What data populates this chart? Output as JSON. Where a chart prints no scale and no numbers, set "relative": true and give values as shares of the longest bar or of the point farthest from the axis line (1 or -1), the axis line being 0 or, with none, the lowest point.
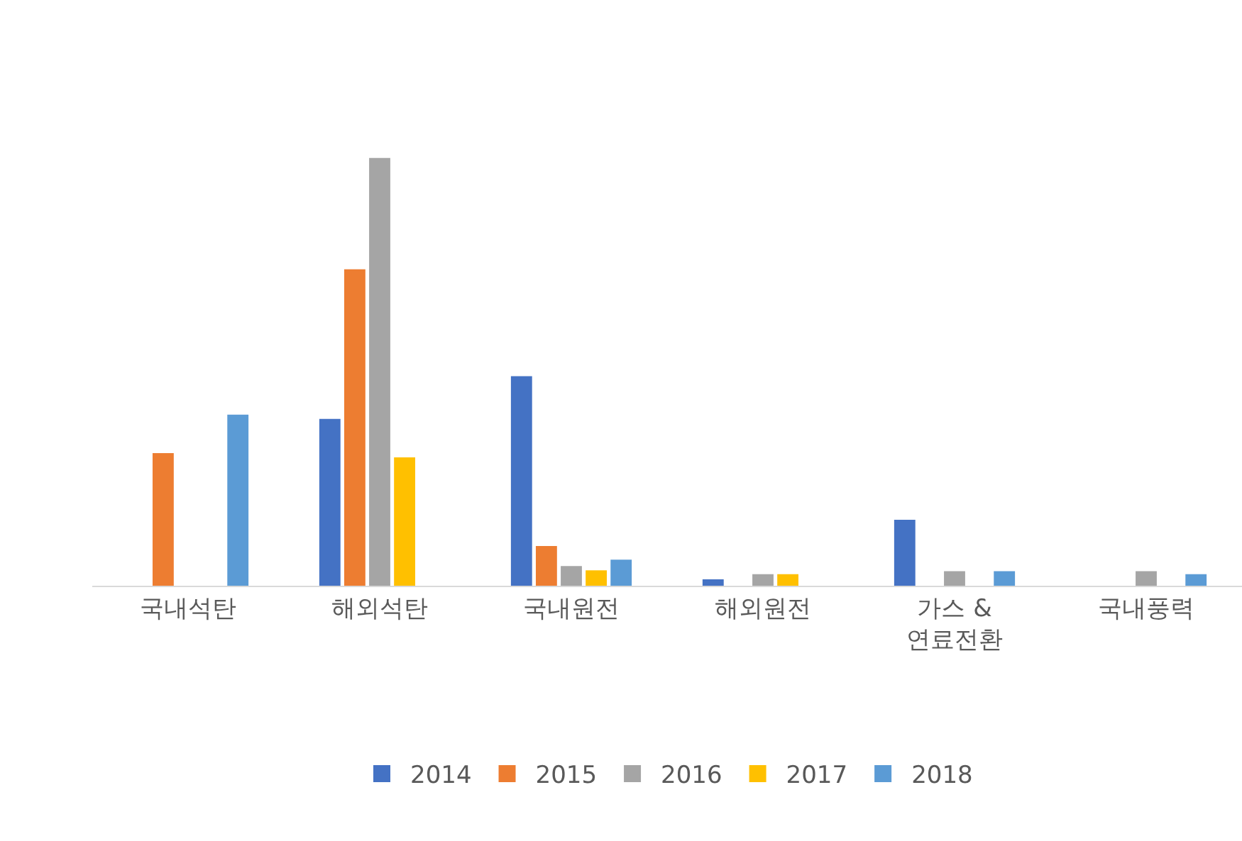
{
  "chart_data": {
    "type": "bar",
    "categories": [
      "국내석탄",
      "해외석탄",
      "국내원전",
      "해외원전",
      "가스 &\n연료전환",
      "국내풍력"
    ],
    "series": [
      {
        "name": "2014",
        "color": "#4472c4",
        "values": [
          null,
          0.39,
          0.49,
          0.015,
          0.154,
          null
        ]
      },
      {
        "name": "2015",
        "color": "#ed7d31",
        "values": [
          0.31,
          0.74,
          0.093,
          null,
          null,
          null
        ]
      },
      {
        "name": "2016",
        "color": "#a5a5a5",
        "values": [
          null,
          1,
          0.046,
          0.027,
          0.034,
          0.034
        ]
      },
      {
        "name": "2017",
        "color": "#ffc000",
        "values": [
          null,
          0.3,
          0.036,
          0.027,
          null,
          null
        ]
      },
      {
        "name": "2018",
        "color": "#5b9bd5",
        "values": [
          0.4,
          null,
          0.061,
          null,
          0.034,
          0.027
        ]
      }
    ],
    "relative": true,
    "legend": "bottom"
  }
}
